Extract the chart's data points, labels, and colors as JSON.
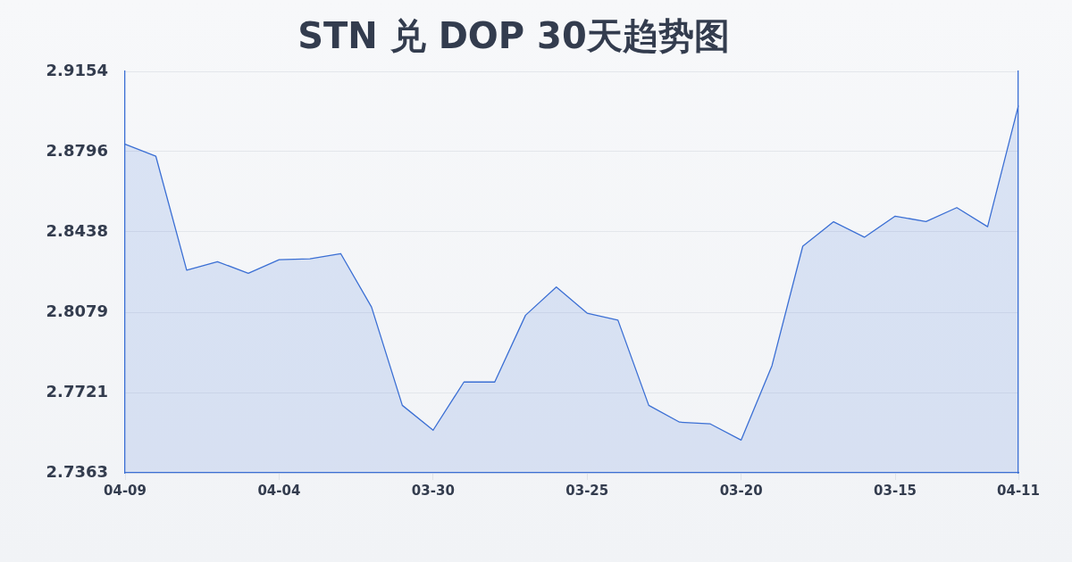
{
  "chart_data": {
    "type": "area",
    "title": "STN 兑 DOP 30天趋势图",
    "categories": [
      "04-09",
      null,
      null,
      null,
      null,
      "04-04",
      null,
      null,
      null,
      null,
      "03-30",
      null,
      null,
      null,
      null,
      "03-25",
      null,
      null,
      null,
      null,
      "03-20",
      null,
      null,
      null,
      null,
      "03-15",
      null,
      null,
      null,
      "04-11"
    ],
    "values": [
      2.8829,
      2.8775,
      2.8267,
      2.8305,
      2.8253,
      2.8314,
      2.8318,
      2.8341,
      2.8103,
      2.7664,
      2.7553,
      2.7768,
      2.7768,
      2.8066,
      2.8192,
      2.8075,
      2.8044,
      2.7664,
      2.7589,
      2.7581,
      2.7509,
      2.7841,
      2.8374,
      2.8483,
      2.8414,
      2.8508,
      2.8484,
      2.8546,
      2.8461,
      2.9001
    ],
    "color": "#3b6fd4",
    "ylim": [
      2.7363,
      2.9154
    ],
    "yticks": [
      2.7363,
      2.7721,
      2.8079,
      2.8438,
      2.8796,
      2.9154
    ],
    "grid": "y",
    "marker": "none"
  }
}
